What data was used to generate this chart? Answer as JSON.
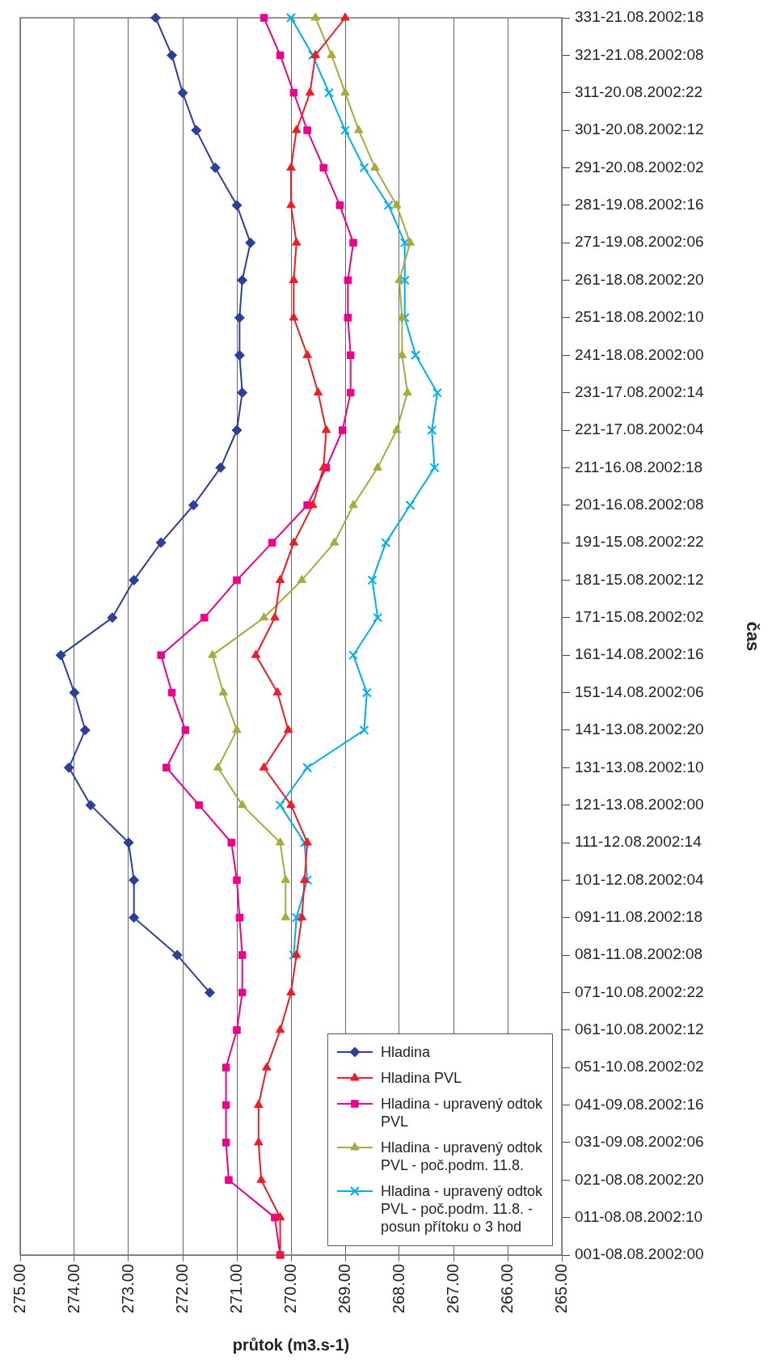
{
  "chart_data": {
    "type": "line",
    "orientation": "horizontal",
    "xlabel": "průtok (m3.s-1)",
    "ylabel": "čas",
    "categories": [
      "331-21.08.2002:18",
      "321-21.08.2002:08",
      "311-20.08.2002:22",
      "301-20.08.2002:12",
      "291-20.08.2002:02",
      "281-19.08.2002:16",
      "271-19.08.2002:06",
      "261-18.08.2002:20",
      "251-18.08.2002:10",
      "241-18.08.2002:00",
      "231-17.08.2002:14",
      "221-17.08.2002:04",
      "211-16.08.2002:18",
      "201-16.08.2002:08",
      "191-15.08.2002:22",
      "181-15.08.2002:12",
      "171-15.08.2002:02",
      "161-14.08.2002:16",
      "151-14.08.2002:06",
      "141-13.08.2002:20",
      "131-13.08.2002:10",
      "121-13.08.2002:00",
      "111-12.08.2002:14",
      "101-12.08.2002:04",
      "091-11.08.2002:18",
      "081-11.08.2002:08",
      "071-10.08.2002:22",
      "061-10.08.2002:12",
      "051-10.08.2002:02",
      "041-09.08.2002:16",
      "031-09.08.2002:06",
      "021-08.08.2002:20",
      "011-08.08.2002:10",
      "001-08.08.2002:00"
    ],
    "series": [
      {
        "name": "Hladina",
        "color": "#2e3f9a",
        "marker": "diamond",
        "values": [
          272.5,
          272.2,
          272.0,
          271.75,
          271.4,
          271.0,
          270.75,
          270.9,
          270.95,
          270.95,
          270.9,
          271.0,
          271.3,
          271.8,
          272.4,
          272.9,
          273.3,
          274.25,
          274.0,
          273.8,
          274.1,
          273.7,
          273.0,
          272.9,
          272.9,
          272.1,
          271.5,
          null,
          null,
          null,
          null,
          null,
          null,
          null
        ]
      },
      {
        "name": "Hladina PVL",
        "color": "#ee1c25",
        "marker": "triangle",
        "values": [
          269.0,
          269.55,
          269.65,
          269.9,
          270.0,
          270.0,
          269.9,
          269.95,
          269.95,
          269.7,
          269.5,
          269.35,
          269.4,
          269.6,
          269.95,
          270.2,
          270.3,
          270.65,
          270.25,
          270.05,
          270.5,
          270.0,
          269.7,
          269.75,
          269.8,
          269.9,
          270.0,
          270.2,
          270.45,
          270.6,
          270.6,
          270.55,
          270.2,
          270.2
        ]
      },
      {
        "name": "Hladina - upravený odtok PVL",
        "color": "#ec008c",
        "marker": "square",
        "values": [
          270.5,
          270.2,
          269.95,
          269.7,
          269.4,
          269.1,
          268.85,
          268.95,
          268.95,
          268.9,
          268.9,
          269.05,
          269.35,
          269.7,
          270.35,
          271.0,
          271.6,
          272.4,
          272.2,
          271.95,
          272.3,
          271.7,
          271.1,
          271.0,
          270.95,
          270.9,
          270.9,
          271.0,
          271.2,
          271.2,
          271.2,
          271.15,
          270.3,
          270.2
        ]
      },
      {
        "name": "Hladina - upravený odtok PVL - poč.podm. 11.8.",
        "color": "#a6ac3c",
        "marker": "triangle",
        "values": [
          269.55,
          269.25,
          269.0,
          268.75,
          268.45,
          268.05,
          267.8,
          268.0,
          267.95,
          267.95,
          267.85,
          268.05,
          268.4,
          268.85,
          269.2,
          269.8,
          270.5,
          271.45,
          271.25,
          271.0,
          271.35,
          270.9,
          270.2,
          270.1,
          270.1,
          null,
          null,
          null,
          null,
          null,
          null,
          null,
          null,
          null
        ]
      },
      {
        "name": "Hladina - upravený odtok PVL - poč.podm. 11.8. - posun přítoku o 3 hod",
        "color": "#00aeef",
        "marker": "cross",
        "values": [
          270.0,
          269.6,
          269.3,
          269.0,
          268.65,
          268.2,
          267.9,
          267.9,
          267.9,
          267.7,
          267.3,
          267.4,
          267.35,
          267.8,
          268.25,
          268.5,
          268.4,
          268.85,
          268.6,
          268.65,
          269.7,
          270.2,
          269.75,
          269.7,
          269.9,
          269.95,
          null,
          null,
          null,
          null,
          null,
          null,
          null,
          null
        ]
      }
    ],
    "xlim": [
      275,
      265
    ],
    "xticks": [
      {
        "value": 275,
        "label": "275.00"
      },
      {
        "value": 274,
        "label": "274.00"
      },
      {
        "value": 273,
        "label": "273.00"
      },
      {
        "value": 272,
        "label": "272.00"
      },
      {
        "value": 271,
        "label": "271.00"
      },
      {
        "value": 270,
        "label": "270.00"
      },
      {
        "value": 269,
        "label": "269.00"
      },
      {
        "value": 268,
        "label": "268.00"
      },
      {
        "value": 267,
        "label": "267.00"
      },
      {
        "value": 266,
        "label": "266.00"
      },
      {
        "value": 265,
        "label": "265.00"
      }
    ],
    "grid": "x",
    "legend": "bottom right"
  }
}
